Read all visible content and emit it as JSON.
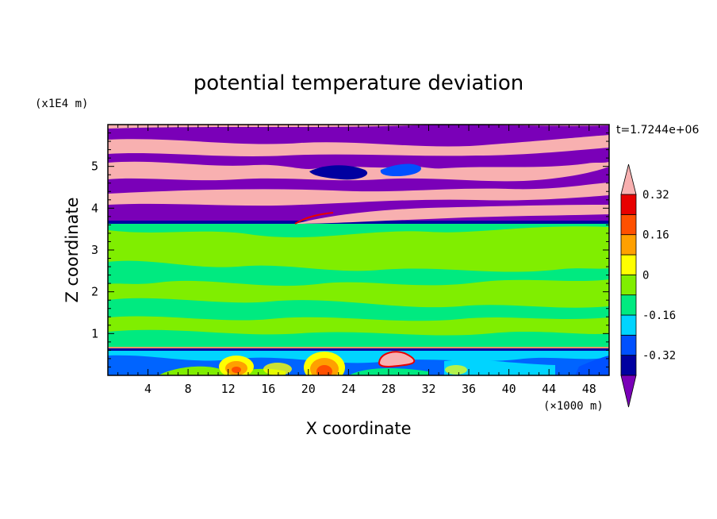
{
  "chart_data": {
    "type": "heatmap",
    "title": "potential temperature deviation",
    "xlabel": "X coordinate",
    "ylabel": "Z coordinate",
    "x_unit": "(×1000 m)",
    "y_unit": "(x1E4 m)",
    "time_label": "t=1.7244e+06",
    "xlim": [
      0,
      50
    ],
    "ylim": [
      0,
      6
    ],
    "x_ticks": [
      4,
      8,
      12,
      16,
      20,
      24,
      28,
      32,
      36,
      40,
      44,
      48
    ],
    "y_ticks": [
      1,
      2,
      3,
      4,
      5
    ],
    "colorbar": {
      "levels": [
        -0.4,
        -0.32,
        -0.24,
        -0.16,
        -0.08,
        0,
        0.08,
        0.16,
        0.24,
        0.32,
        0.4
      ],
      "colors": [
        "#7a00b8",
        "#0000a0",
        "#0050ff",
        "#00d4ff",
        "#00ea80",
        "#80ee00",
        "#ffff00",
        "#ffa000",
        "#ff5000",
        "#e80000",
        "#f8b0b0"
      ],
      "tick_labels": [
        "0.32",
        "0.16",
        "0",
        "-0.16",
        "-0.32"
      ],
      "tick_values": [
        0.32,
        0.16,
        0,
        -0.16,
        -0.32
      ],
      "extend": "both"
    },
    "bands": [
      {
        "z_range": [
          0,
          0.6
        ],
        "value": -0.16,
        "description": "lowest layer, mixed blue/cyan with warm anomalies"
      },
      {
        "z_range": [
          0.6,
          3.7
        ],
        "value": 0.02,
        "description": "mostly green/light-green"
      },
      {
        "z_range": [
          3.7,
          6
        ],
        "value": "alternating",
        "description": "alternating purple (below -0.4) and pink (above 0.4) layers"
      }
    ],
    "warm_anomalies": [
      {
        "x": 12.5,
        "z": 0.15,
        "value": 0.24
      },
      {
        "x": 21.5,
        "z": 0.1,
        "value": 0.35
      },
      {
        "x": 28.5,
        "z": 0.4,
        "value": 0.4
      },
      {
        "x": 35,
        "z": 0.2,
        "value": 0.1
      },
      {
        "x": 18,
        "z": 0.2,
        "value": 0.1
      }
    ]
  }
}
